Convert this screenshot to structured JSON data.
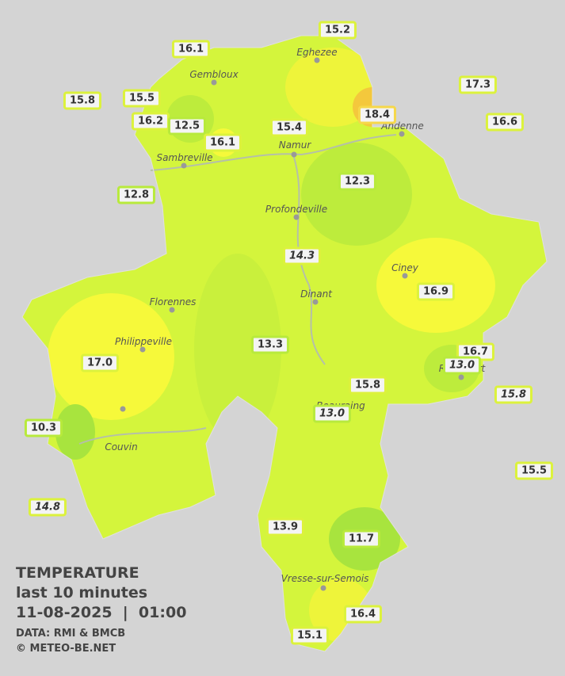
{
  "title": {
    "lines": [
      "TEMPERATURE",
      "last 10 minutes",
      "11-08-2025  |  01:00"
    ]
  },
  "credits": [
    "DATA: RMI & BMCB",
    "© METEO-BE.NET"
  ],
  "cities": [
    "Eghezee",
    "Gembloux",
    "Andenne",
    "Namur",
    "Sambreville",
    "Profondeville",
    "Ciney",
    "Dinant",
    "Florennes",
    "Philippeville",
    "Rochefort",
    "Beauraing",
    "Couvin",
    "Vresse-sur-Semois"
  ],
  "stations": [
    "15.2",
    "16.1",
    "15.8",
    "15.5",
    "17.3",
    "16.6",
    "16.2",
    "12.5",
    "18.4",
    "16.1",
    "15.4",
    "12.3",
    "12.8",
    "14.3",
    "16.9",
    "13.3",
    "17.0",
    "16.7",
    "13.0",
    "15.8",
    "15.8",
    "13.0",
    "10.3",
    "15.5",
    "14.8",
    "13.9",
    "11.7",
    "16.4",
    "15.1"
  ]
}
